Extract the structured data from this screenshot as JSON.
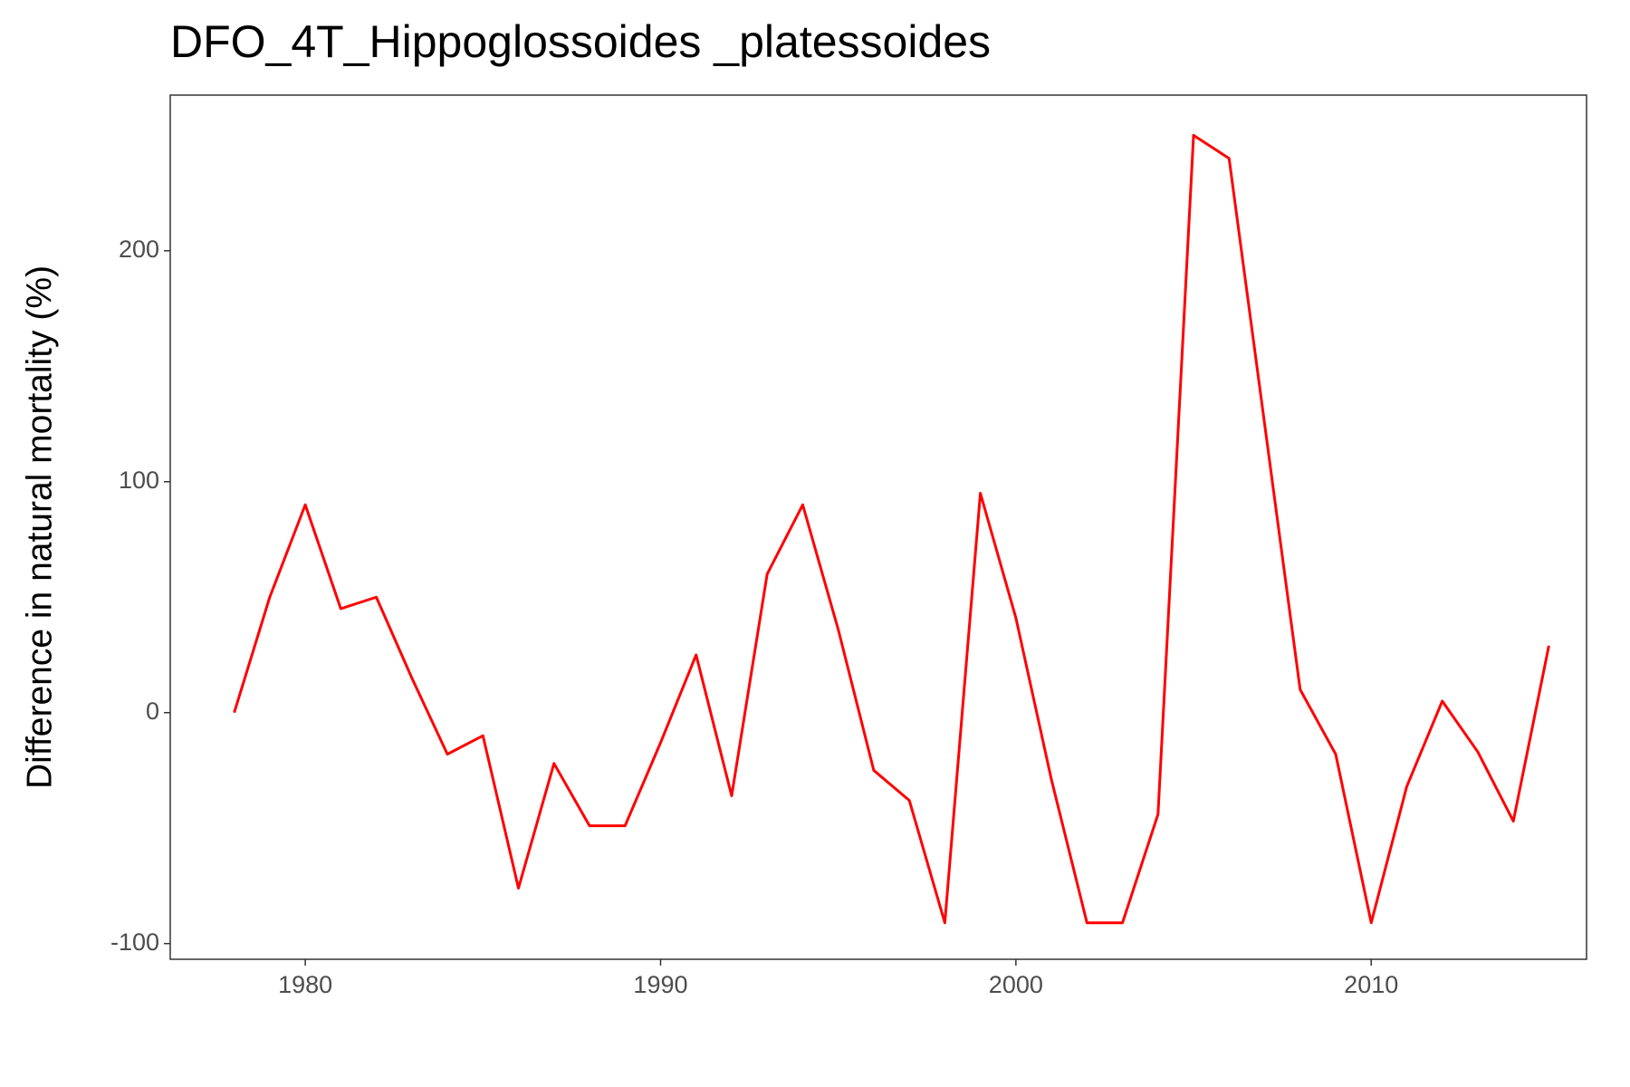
{
  "chart_data": {
    "type": "line",
    "title": "DFO_4T_Hippoglossoides _platessoides",
    "y_label": "Difference in natural mortality (%)",
    "x": [
      1978,
      1979,
      1980,
      1981,
      1982,
      1983,
      1984,
      1985,
      1986,
      1987,
      1988,
      1989,
      1990,
      1991,
      1992,
      1993,
      1994,
      1995,
      1996,
      1997,
      1998,
      1999,
      2000,
      2001,
      2002,
      2003,
      2004,
      2005,
      2006,
      2007,
      2008,
      2009,
      2010,
      2011,
      2012,
      2013,
      2014,
      2015
    ],
    "series": [
      {
        "color": "#ff0000",
        "values": [
          0,
          50,
          90,
          45,
          50,
          15,
          -18,
          -10,
          -76,
          -22,
          -49,
          -49,
          -13,
          25,
          -36,
          60,
          90,
          36,
          -25,
          -38,
          -91,
          95,
          41,
          -29,
          -91,
          -91,
          -44,
          250,
          240,
          125,
          10,
          -18,
          -91,
          -32,
          5,
          -17,
          -47,
          29
        ]
      }
    ],
    "xlim": [
      1976.2,
      2016.06
    ],
    "xticks": [
      1980,
      1990,
      2000,
      2010
    ],
    "ylim": [
      -106.8,
      267.4
    ],
    "yticks": [
      -100,
      0,
      100,
      200
    ],
    "grid": false
  }
}
